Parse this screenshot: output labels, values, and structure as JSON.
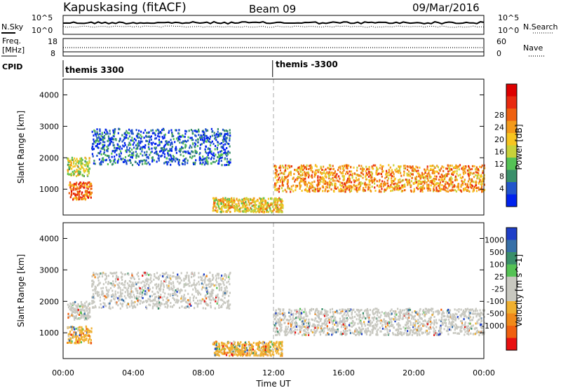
{
  "header": {
    "radar": "Kapuskasing (fitACF)",
    "beam": "Beam 09",
    "date": "09/Mar/2016"
  },
  "top_panel": {
    "nsky_label": "N.Sky",
    "nsearch_label": "N.Search",
    "y_ticks": [
      "10^5",
      "10^0"
    ],
    "y_ticks_right": [
      "10^5",
      "10^0"
    ]
  },
  "freq_panel": {
    "freq_label_1": "Freq.",
    "freq_label_2": "[MHz]",
    "left_ticks": [
      "18",
      "8"
    ],
    "right_ticks": [
      "60",
      "0"
    ],
    "nave_label": "Nave"
  },
  "cpid": {
    "label": "CPID",
    "segments": [
      "themis 3300",
      "themis -3300"
    ],
    "switch_hour": 11.95
  },
  "chart_data": [
    {
      "type": "heatmap",
      "title": "",
      "xlabel": "Time UT",
      "ylabel": "Slant Range [km]",
      "x_ticks": [
        "00:00",
        "04:00",
        "08:00",
        "12:00",
        "16:00",
        "20:00",
        "00:00"
      ],
      "xlim_hours": [
        0,
        24
      ],
      "ylim_km": [
        180,
        4500
      ],
      "y_ticks": [
        1000,
        2000,
        3000,
        4000
      ],
      "colorbar_label": "Power [dB]",
      "colorbar_ticks": [
        "4",
        "8",
        "12",
        "16",
        "20",
        "24",
        "28"
      ],
      "colorbar_colors": [
        "#0022ee",
        "#2255cc",
        "#3a8f6a",
        "#55c255",
        "#c8d23a",
        "#f7c520",
        "#f39a1a",
        "#ee6010",
        "#e82a10",
        "#dd0000"
      ],
      "features": [
        {
          "t0": 0.3,
          "t1": 1.6,
          "r0": 700,
          "r1": 1250,
          "level": 7
        },
        {
          "t0": 0.2,
          "t1": 1.5,
          "r0": 1450,
          "r1": 2050,
          "level": 4
        },
        {
          "t0": 1.6,
          "t1": 9.5,
          "r0": 1800,
          "r1": 2950,
          "level": 1
        },
        {
          "t0": 12.0,
          "t1": 24.0,
          "r0": 950,
          "r1": 1800,
          "level": 6
        },
        {
          "t0": 8.5,
          "t1": 12.5,
          "r0": 300,
          "r1": 750,
          "level": 5
        }
      ]
    },
    {
      "type": "heatmap",
      "title": "",
      "xlabel": "Time UT",
      "ylabel": "Slant Range [km]",
      "x_ticks": [
        "00:00",
        "04:00",
        "08:00",
        "12:00",
        "16:00",
        "20:00",
        "00:00"
      ],
      "xlim_hours": [
        0,
        24
      ],
      "ylim_km": [
        180,
        4500
      ],
      "y_ticks": [
        1000,
        2000,
        3000,
        4000
      ],
      "colorbar_label": "Velocity [m s^-1]",
      "colorbar_ticks": [
        "1000",
        "500",
        "100",
        "25",
        "-25",
        "-100",
        "-500",
        "-1000"
      ],
      "colorbar_colors": [
        "#1f3fc8",
        "#3770a8",
        "#3a8f6a",
        "#55c255",
        "#c8c8c0",
        "#c8c8c0",
        "#f0b030",
        "#f08a1a",
        "#f06010",
        "#e81010"
      ],
      "features": [
        {
          "t0": 0.2,
          "t1": 1.6,
          "r0": 700,
          "r1": 1250,
          "level": "orange"
        },
        {
          "t0": 0.2,
          "t1": 1.5,
          "r0": 1450,
          "r1": 2050,
          "level": "grey"
        },
        {
          "t0": 1.6,
          "t1": 9.5,
          "r0": 1800,
          "r1": 2950,
          "level": "grey"
        },
        {
          "t0": 12.0,
          "t1": 24.0,
          "r0": 950,
          "r1": 1800,
          "level": "grey"
        },
        {
          "t0": 8.5,
          "t1": 12.5,
          "r0": 300,
          "r1": 750,
          "level": "orange"
        }
      ]
    }
  ]
}
